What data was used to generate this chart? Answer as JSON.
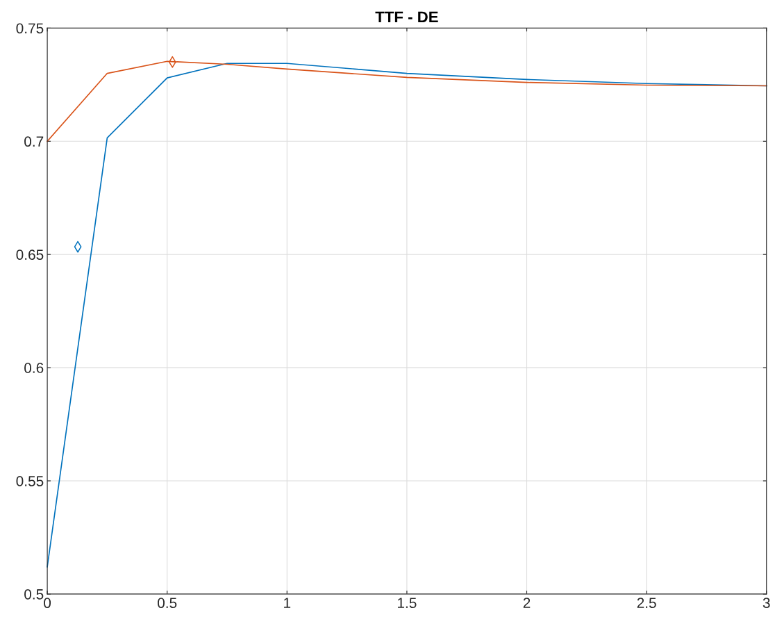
{
  "chart_data": {
    "type": "line",
    "title": "TTF - DE",
    "series": [
      {
        "color": "#0072bd",
        "x": [
          0,
          0.25,
          0.5,
          0.75,
          1,
          1.5,
          2,
          2.5,
          3
        ],
        "values": [
          0.512,
          0.7015,
          0.728,
          0.7344,
          0.7344,
          0.73,
          0.7273,
          0.7255,
          0.7245
        ]
      },
      {
        "color": "#d95319",
        "x": [
          0,
          0.25,
          0.5,
          0.75,
          1,
          1.5,
          2,
          2.5,
          3
        ],
        "values": [
          0.7,
          0.73,
          0.7353,
          0.734,
          0.7319,
          0.7282,
          0.726,
          0.7248,
          0.7245
        ]
      },
      {
        "type": "scatter",
        "marker": "diamond",
        "color": "#0072bd",
        "x": [
          0.1275
        ],
        "values": [
          0.6534
        ]
      },
      {
        "type": "scatter",
        "marker": "diamond",
        "color": "#d95319",
        "x": [
          0.522
        ],
        "values": [
          0.735
        ]
      }
    ],
    "xlim": [
      0,
      3
    ],
    "xticks": [
      0,
      0.5,
      1,
      1.5,
      2,
      2.5,
      3
    ],
    "ylim": [
      0.5,
      0.75
    ],
    "yticks": [
      0.5,
      0.55,
      0.6,
      0.65,
      0.7,
      0.75
    ],
    "grid": true
  }
}
